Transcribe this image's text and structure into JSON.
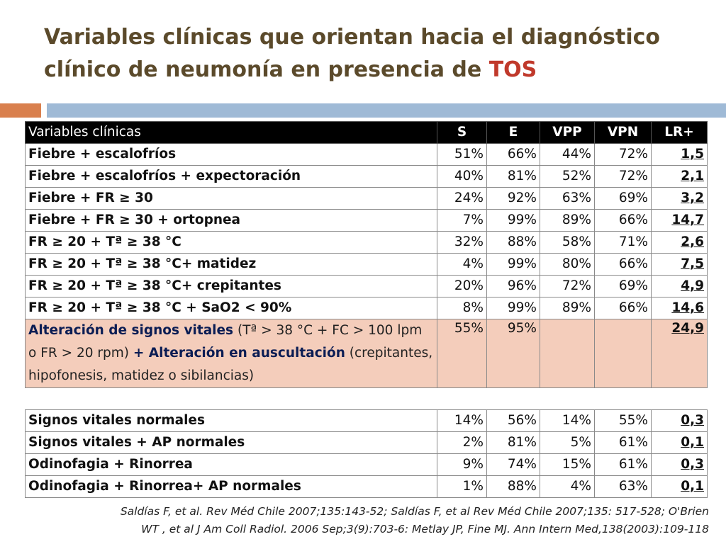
{
  "title": {
    "prefix": "Variables clínicas que orientan hacia el diagnóstico clínico de neumonía en presencia de ",
    "highlight": "TOS"
  },
  "header": [
    "Variables clínicas",
    "S",
    "E",
    "VPP",
    "VPN",
    "LR+"
  ],
  "rows": [
    [
      "Fiebre + escalofríos",
      "51%",
      "66%",
      "44%",
      "72%",
      "1,5"
    ],
    [
      "Fiebre + escalofríos + expectoración",
      "40%",
      "81%",
      "52%",
      "72%",
      "2,1"
    ],
    [
      "Fiebre + FR ≥ 30",
      "24%",
      "92%",
      "63%",
      "69%",
      "3,2"
    ],
    [
      "Fiebre + FR ≥ 30 + ortopnea",
      "7%",
      "99%",
      "89%",
      "66%",
      "14,7"
    ],
    [
      "FR ≥ 20 + Tª ≥ 38 °C",
      "32%",
      "88%",
      "58%",
      "71%",
      "2,6"
    ],
    [
      "FR ≥ 20  + Tª ≥ 38 °C+ matidez",
      "4%",
      "99%",
      "80%",
      "66%",
      "7,5"
    ],
    [
      "FR ≥ 20 + Tª ≥ 38 °C+ crepitantes",
      "20%",
      "96%",
      "72%",
      "69%",
      "4,9"
    ],
    [
      "FR ≥ 20 + Tª ≥ 38 °C + SaO2 < 90%",
      "8%",
      "99%",
      "89%",
      "66%",
      "14,6"
    ]
  ],
  "highlight_row": {
    "part1_bold": "Alteración de signos vitales",
    "part1": " (Tª > 38 °C + FC > 100 lpm o FR > 20 rpm) ",
    "part2_bold": "+ Alteración en auscultación",
    "part2": " (crepitantes, hipofonesis, matidez o sibilancias)",
    "s": "55%",
    "e": "95%",
    "vpp": "",
    "vpn": "",
    "lr": "24,9"
  },
  "rows2": [
    [
      "Signos vitales normales",
      "14%",
      "56%",
      "14%",
      "55%",
      "0,3"
    ],
    [
      "Signos vitales + AP normales",
      "2%",
      "81%",
      "5%",
      "61%",
      "0,1"
    ],
    [
      "Odinofagia + Rinorrea",
      "9%",
      "74%",
      "15%",
      "61%",
      "0,3"
    ],
    [
      "Odinofagia + Rinorrea+ AP normales",
      "1%",
      "88%",
      "4%",
      "63%",
      "0,1"
    ]
  ],
  "references": [
    "Saldías F, et al. Rev Méd Chile 2007;135:143-52; Saldías F, et al Rev Méd Chile 2007;135: 517-528;  O'Brien",
    "WT , et al J Am Coll Radiol. 2006 Sep;3(9):703-6: Metlay JP, Fine MJ. Ann Intern Med,138(2003):109-118"
  ],
  "colors": {
    "title": "#5b4a2b",
    "highlight": "#c0392b",
    "orange_bar": "#d9804e",
    "blue_bar": "#9fbad6",
    "row_highlight": "#f4cdbb"
  }
}
